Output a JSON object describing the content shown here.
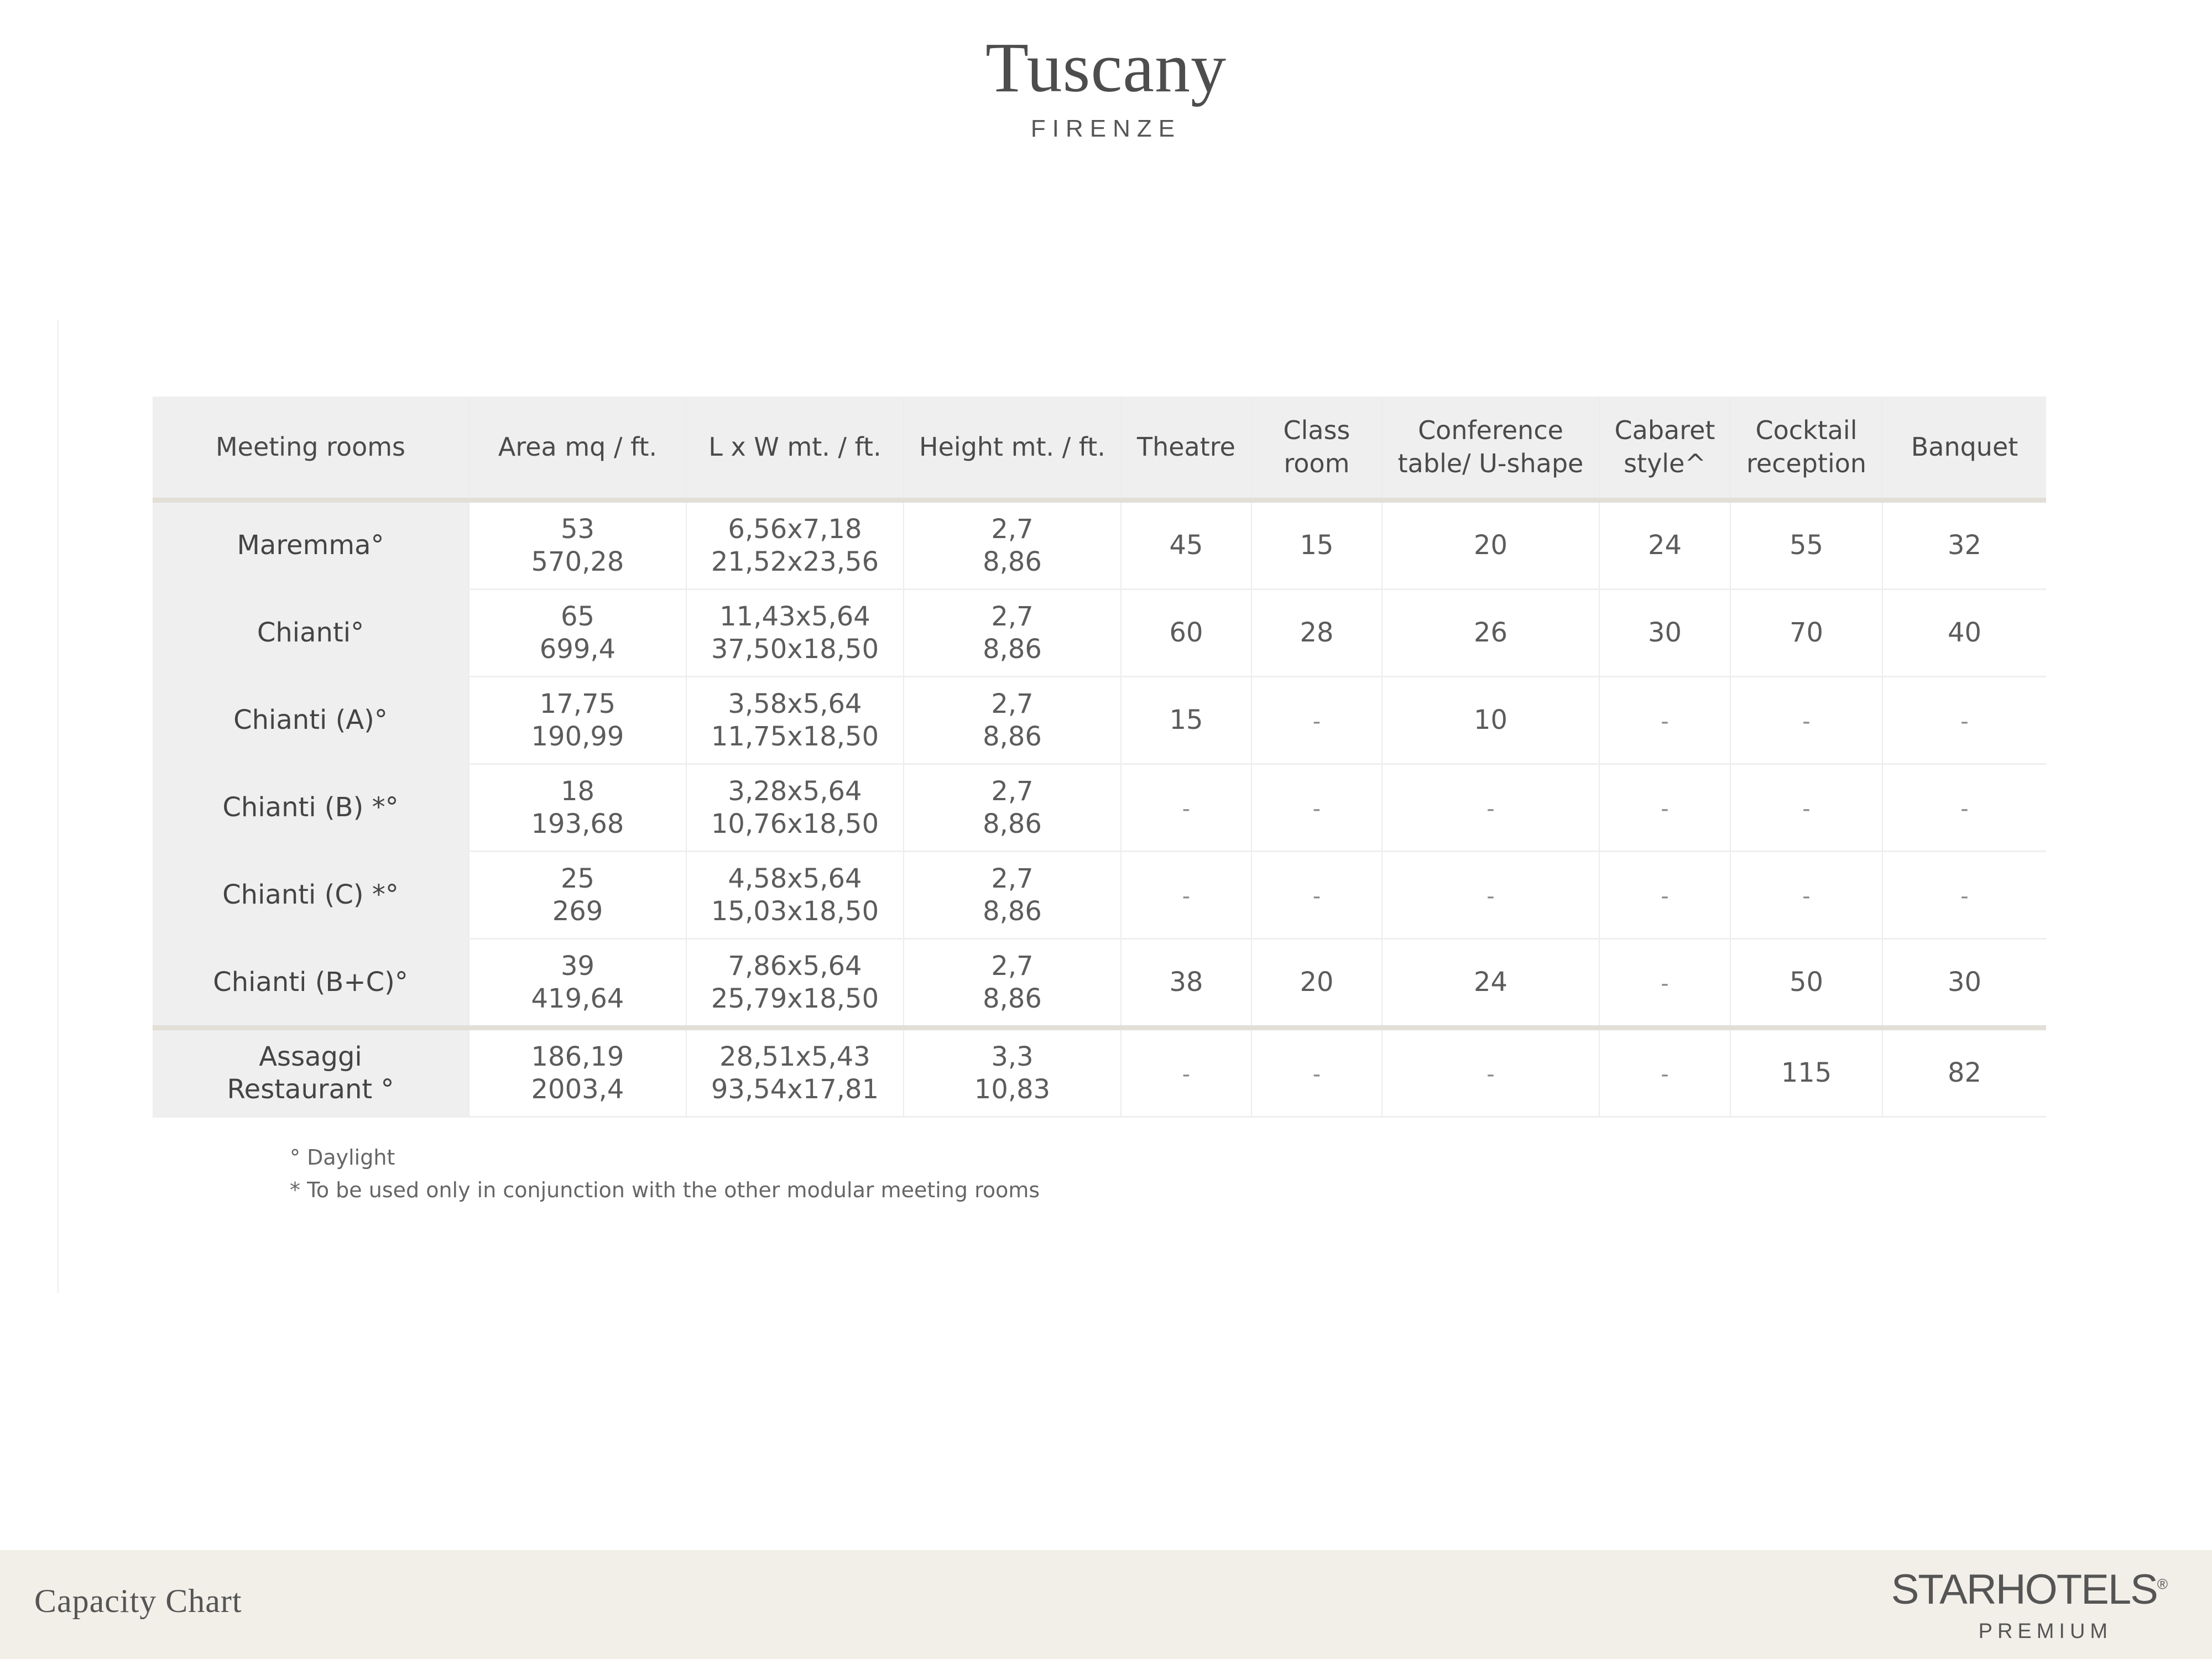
{
  "header": {
    "title": "Tuscany",
    "subtitle": "FIRENZE"
  },
  "table": {
    "columns": [
      "Meeting rooms",
      "Area mq / ft.",
      "L x W mt. / ft.",
      "Height mt. / ft.",
      "Theatre",
      [
        "Class",
        "room"
      ],
      [
        "Conference",
        "table/ U-shape"
      ],
      [
        "Cabaret",
        "style^"
      ],
      [
        "Cocktail",
        "reception"
      ],
      "Banquet"
    ],
    "rows": [
      {
        "room": [
          "Maremma°"
        ],
        "area": [
          "53",
          "570,28"
        ],
        "lxw": [
          "6,56x7,18",
          "21,52x23,56"
        ],
        "height": [
          "2,7",
          "8,86"
        ],
        "theatre": "45",
        "class_room": "15",
        "conference": "20",
        "cabaret": "24",
        "cocktail": "55",
        "banquet": "32"
      },
      {
        "room": [
          "Chianti°"
        ],
        "area": [
          "65",
          "699,4"
        ],
        "lxw": [
          "11,43x5,64",
          "37,50x18,50"
        ],
        "height": [
          "2,7",
          "8,86"
        ],
        "theatre": "60",
        "class_room": "28",
        "conference": "26",
        "cabaret": "30",
        "cocktail": "70",
        "banquet": "40"
      },
      {
        "room": [
          "Chianti (A)°"
        ],
        "area": [
          "17,75",
          "190,99"
        ],
        "lxw": [
          "3,58x5,64",
          "11,75x18,50"
        ],
        "height": [
          "2,7",
          "8,86"
        ],
        "theatre": "15",
        "class_room": "-",
        "conference": "10",
        "cabaret": "-",
        "cocktail": "-",
        "banquet": "-"
      },
      {
        "room": [
          "Chianti (B) *°"
        ],
        "area": [
          "18",
          "193,68"
        ],
        "lxw": [
          "3,28x5,64",
          "10,76x18,50"
        ],
        "height": [
          "2,7",
          "8,86"
        ],
        "theatre": "-",
        "class_room": "-",
        "conference": "-",
        "cabaret": "-",
        "cocktail": "-",
        "banquet": "-"
      },
      {
        "room": [
          "Chianti (C) *°"
        ],
        "area": [
          "25",
          "269"
        ],
        "lxw": [
          "4,58x5,64",
          "15,03x18,50"
        ],
        "height": [
          "2,7",
          "8,86"
        ],
        "theatre": "-",
        "class_room": "-",
        "conference": "-",
        "cabaret": "-",
        "cocktail": "-",
        "banquet": "-"
      },
      {
        "room": [
          "Chianti (B+C)°"
        ],
        "area": [
          "39",
          "419,64"
        ],
        "lxw": [
          "7,86x5,64",
          "25,79x18,50"
        ],
        "height": [
          "2,7",
          "8,86"
        ],
        "theatre": "38",
        "class_room": "20",
        "conference": "24",
        "cabaret": "-",
        "cocktail": "50",
        "banquet": "30"
      },
      {
        "room": [
          "Assaggi",
          "Restaurant °"
        ],
        "area": [
          "186,19",
          "2003,4"
        ],
        "lxw": [
          "28,51x5,43",
          "93,54x17,81"
        ],
        "height": [
          "3,3",
          "10,83"
        ],
        "theatre": "-",
        "class_room": "-",
        "conference": "-",
        "cabaret": "-",
        "cocktail": "115",
        "banquet": "82",
        "separator_above": true
      }
    ]
  },
  "notes": [
    "° Daylight",
    "* To be used only in conjunction with the other modular meeting rooms"
  ],
  "footer": {
    "title": "Capacity Chart",
    "brand_name": "STARHOTELS",
    "brand_mark": "®",
    "brand_sub": "PREMIUM"
  },
  "colors": {
    "header_bg": "#efefef",
    "separator": "#e2dfd7",
    "footer_bg": "#f1efe8",
    "text": "#555555"
  }
}
